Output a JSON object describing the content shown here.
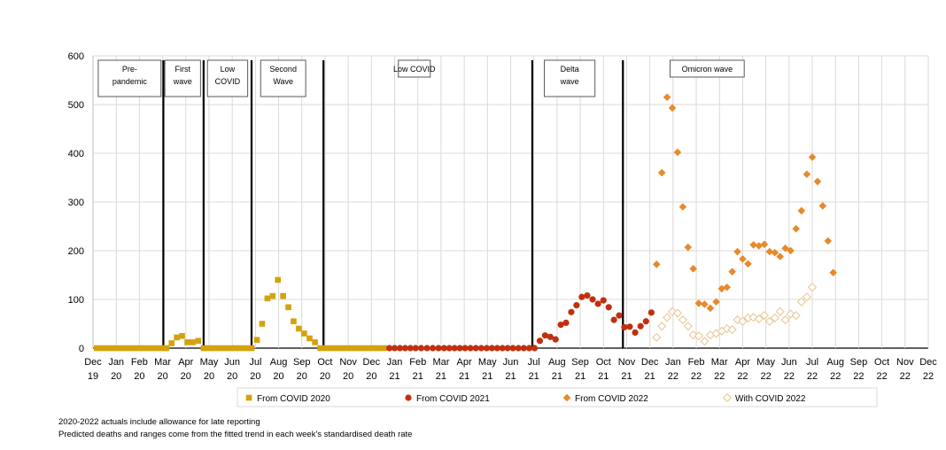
{
  "chart_data": {
    "type": "scatter",
    "ylim": [
      0,
      600
    ],
    "y_ticks": [
      0,
      100,
      200,
      300,
      400,
      500,
      600
    ],
    "x_range_months": [
      "2019-12",
      "2022-12"
    ],
    "x_tick_labels": [
      [
        "Dec",
        "19"
      ],
      [
        "Jan",
        "20"
      ],
      [
        "Feb",
        "20"
      ],
      [
        "Mar",
        "20"
      ],
      [
        "Apr",
        "20"
      ],
      [
        "May",
        "20"
      ],
      [
        "Jun",
        "20"
      ],
      [
        "Jul",
        "20"
      ],
      [
        "Aug",
        "20"
      ],
      [
        "Sep",
        "20"
      ],
      [
        "Oct",
        "20"
      ],
      [
        "Nov",
        "20"
      ],
      [
        "Dec",
        "20"
      ],
      [
        "Jan",
        "21"
      ],
      [
        "Feb",
        "21"
      ],
      [
        "Mar",
        "21"
      ],
      [
        "Apr",
        "21"
      ],
      [
        "May",
        "21"
      ],
      [
        "Jun",
        "21"
      ],
      [
        "Jul",
        "21"
      ],
      [
        "Aug",
        "21"
      ],
      [
        "Sep",
        "21"
      ],
      [
        "Oct",
        "21"
      ],
      [
        "Nov",
        "21"
      ],
      [
        "Dec",
        "21"
      ],
      [
        "Jan",
        "22"
      ],
      [
        "Feb",
        "22"
      ],
      [
        "Mar",
        "22"
      ],
      [
        "Apr",
        "22"
      ],
      [
        "May",
        "22"
      ],
      [
        "Jun",
        "22"
      ],
      [
        "Jul",
        "22"
      ],
      [
        "Aug",
        "22"
      ],
      [
        "Sep",
        "22"
      ],
      [
        "Oct",
        "22"
      ],
      [
        "Nov",
        "22"
      ],
      [
        "Dec",
        "22"
      ]
    ],
    "grid": "vertical and horizontal",
    "legend_position": "bottom",
    "period_dividers": [
      "2020-03-02",
      "2020-04-24",
      "2020-06-26",
      "2020-09-29",
      "2021-06-29",
      "2021-10-27"
    ],
    "period_labels": [
      {
        "text": [
          "Pre-",
          "pandemic"
        ],
        "start": "2019-12-08",
        "end": "2020-02-28"
      },
      {
        "text": [
          "First",
          "wave"
        ],
        "start": "2020-03-04",
        "end": "2020-04-20"
      },
      {
        "text": [
          "Low",
          "COVID"
        ],
        "start": "2020-04-29",
        "end": "2020-06-21"
      },
      {
        "text": [
          "Second",
          "Wave"
        ],
        "start": "2020-07-08",
        "end": "2020-09-06"
      },
      {
        "text": [
          "Low COVID"
        ],
        "start": "2021-01-06",
        "end": "2021-02-16"
      },
      {
        "text": [
          "Delta",
          "wave"
        ],
        "start": "2021-07-15",
        "end": "2021-09-20"
      },
      {
        "text": [
          "Omicron wave"
        ],
        "start": "2021-12-28",
        "end": "2022-04-03"
      }
    ],
    "series": [
      {
        "name": "From COVID 2020",
        "marker": "square",
        "color": "#d4a20c",
        "points": [
          [
            "2019-12-06",
            0
          ],
          [
            "2019-12-13",
            0
          ],
          [
            "2019-12-20",
            0
          ],
          [
            "2019-12-27",
            0
          ],
          [
            "2020-01-03",
            0
          ],
          [
            "2020-01-10",
            0
          ],
          [
            "2020-01-17",
            0
          ],
          [
            "2020-01-24",
            0
          ],
          [
            "2020-01-31",
            0
          ],
          [
            "2020-02-07",
            0
          ],
          [
            "2020-02-14",
            0
          ],
          [
            "2020-02-21",
            0
          ],
          [
            "2020-02-28",
            0
          ],
          [
            "2020-03-06",
            0
          ],
          [
            "2020-03-13",
            10
          ],
          [
            "2020-03-20",
            22
          ],
          [
            "2020-03-27",
            25
          ],
          [
            "2020-04-03",
            12
          ],
          [
            "2020-04-10",
            12
          ],
          [
            "2020-04-17",
            15
          ],
          [
            "2020-04-24",
            0
          ],
          [
            "2020-05-01",
            0
          ],
          [
            "2020-05-08",
            0
          ],
          [
            "2020-05-15",
            0
          ],
          [
            "2020-05-22",
            0
          ],
          [
            "2020-05-29",
            0
          ],
          [
            "2020-06-05",
            0
          ],
          [
            "2020-06-12",
            0
          ],
          [
            "2020-06-19",
            0
          ],
          [
            "2020-06-26",
            0
          ],
          [
            "2020-07-03",
            17
          ],
          [
            "2020-07-10",
            50
          ],
          [
            "2020-07-17",
            102
          ],
          [
            "2020-07-24",
            107
          ],
          [
            "2020-07-31",
            140
          ],
          [
            "2020-08-07",
            107
          ],
          [
            "2020-08-14",
            84
          ],
          [
            "2020-08-21",
            55
          ],
          [
            "2020-08-28",
            40
          ],
          [
            "2020-09-04",
            30
          ],
          [
            "2020-09-11",
            20
          ],
          [
            "2020-09-18",
            12
          ],
          [
            "2020-09-25",
            0
          ],
          [
            "2020-10-02",
            0
          ],
          [
            "2020-10-09",
            0
          ],
          [
            "2020-10-16",
            0
          ],
          [
            "2020-10-23",
            0
          ],
          [
            "2020-10-30",
            0
          ],
          [
            "2020-11-06",
            0
          ],
          [
            "2020-11-13",
            0
          ],
          [
            "2020-11-20",
            0
          ],
          [
            "2020-11-27",
            0
          ],
          [
            "2020-12-04",
            0
          ],
          [
            "2020-12-11",
            0
          ],
          [
            "2020-12-18",
            0
          ]
        ]
      },
      {
        "name": "From COVID 2021",
        "marker": "circle",
        "color": "#c0300f",
        "points": [
          [
            "2020-12-25",
            0
          ],
          [
            "2021-01-01",
            0
          ],
          [
            "2021-01-08",
            0
          ],
          [
            "2021-01-15",
            0
          ],
          [
            "2021-01-22",
            0
          ],
          [
            "2021-01-29",
            0
          ],
          [
            "2021-02-05",
            0
          ],
          [
            "2021-02-12",
            0
          ],
          [
            "2021-02-19",
            0
          ],
          [
            "2021-02-26",
            0
          ],
          [
            "2021-03-05",
            0
          ],
          [
            "2021-03-12",
            0
          ],
          [
            "2021-03-19",
            0
          ],
          [
            "2021-03-26",
            0
          ],
          [
            "2021-04-02",
            0
          ],
          [
            "2021-04-09",
            0
          ],
          [
            "2021-04-16",
            0
          ],
          [
            "2021-04-23",
            0
          ],
          [
            "2021-04-30",
            0
          ],
          [
            "2021-05-07",
            0
          ],
          [
            "2021-05-14",
            0
          ],
          [
            "2021-05-21",
            0
          ],
          [
            "2021-05-28",
            0
          ],
          [
            "2021-06-04",
            0
          ],
          [
            "2021-06-11",
            0
          ],
          [
            "2021-06-18",
            0
          ],
          [
            "2021-06-25",
            0
          ],
          [
            "2021-07-02",
            0
          ],
          [
            "2021-07-09",
            15
          ],
          [
            "2021-07-16",
            26
          ],
          [
            "2021-07-23",
            23
          ],
          [
            "2021-07-30",
            18
          ],
          [
            "2021-08-06",
            48
          ],
          [
            "2021-08-13",
            52
          ],
          [
            "2021-08-20",
            74
          ],
          [
            "2021-08-27",
            88
          ],
          [
            "2021-09-03",
            105
          ],
          [
            "2021-09-10",
            108
          ],
          [
            "2021-09-17",
            100
          ],
          [
            "2021-09-24",
            91
          ],
          [
            "2021-10-01",
            98
          ],
          [
            "2021-10-08",
            84
          ],
          [
            "2021-10-15",
            58
          ],
          [
            "2021-10-22",
            67
          ],
          [
            "2021-10-29",
            43
          ],
          [
            "2021-11-05",
            44
          ],
          [
            "2021-11-12",
            32
          ],
          [
            "2021-11-19",
            45
          ],
          [
            "2021-11-26",
            55
          ],
          [
            "2021-12-03",
            73
          ]
        ]
      },
      {
        "name": "From COVID 2022",
        "marker": "diamond",
        "color": "#e8892a",
        "points": [
          [
            "2021-12-10",
            172
          ],
          [
            "2021-12-17",
            360
          ],
          [
            "2021-12-24",
            515
          ],
          [
            "2021-12-31",
            493
          ],
          [
            "2022-01-07",
            402
          ],
          [
            "2022-01-14",
            290
          ],
          [
            "2022-01-21",
            207
          ],
          [
            "2022-01-28",
            163
          ],
          [
            "2022-02-04",
            92
          ],
          [
            "2022-02-11",
            90
          ],
          [
            "2022-02-18",
            82
          ],
          [
            "2022-02-25",
            95
          ],
          [
            "2022-03-04",
            122
          ],
          [
            "2022-03-11",
            125
          ],
          [
            "2022-03-18",
            157
          ],
          [
            "2022-03-25",
            198
          ],
          [
            "2022-04-01",
            183
          ],
          [
            "2022-04-08",
            173
          ],
          [
            "2022-04-15",
            212
          ],
          [
            "2022-04-22",
            210
          ],
          [
            "2022-04-29",
            213
          ],
          [
            "2022-05-06",
            198
          ],
          [
            "2022-05-13",
            196
          ],
          [
            "2022-05-20",
            188
          ],
          [
            "2022-05-27",
            205
          ],
          [
            "2022-06-03",
            200
          ],
          [
            "2022-06-10",
            245
          ],
          [
            "2022-06-17",
            282
          ],
          [
            "2022-06-24",
            357
          ],
          [
            "2022-07-01",
            392
          ],
          [
            "2022-07-08",
            342
          ],
          [
            "2022-07-15",
            292
          ],
          [
            "2022-07-22",
            220
          ],
          [
            "2022-07-29",
            155
          ]
        ]
      },
      {
        "name": "With COVID 2022",
        "marker": "diamond-open",
        "color": "#e8c99a",
        "points": [
          [
            "2021-12-10",
            22
          ],
          [
            "2021-12-17",
            45
          ],
          [
            "2021-12-24",
            63
          ],
          [
            "2021-12-31",
            75
          ],
          [
            "2022-01-07",
            72
          ],
          [
            "2022-01-14",
            58
          ],
          [
            "2022-01-21",
            45
          ],
          [
            "2022-01-28",
            27
          ],
          [
            "2022-02-04",
            25
          ],
          [
            "2022-02-11",
            14
          ],
          [
            "2022-02-18",
            27
          ],
          [
            "2022-02-25",
            30
          ],
          [
            "2022-03-04",
            35
          ],
          [
            "2022-03-11",
            40
          ],
          [
            "2022-03-18",
            38
          ],
          [
            "2022-03-25",
            58
          ],
          [
            "2022-04-01",
            55
          ],
          [
            "2022-04-08",
            62
          ],
          [
            "2022-04-15",
            63
          ],
          [
            "2022-04-22",
            60
          ],
          [
            "2022-04-29",
            67
          ],
          [
            "2022-05-06",
            55
          ],
          [
            "2022-05-13",
            62
          ],
          [
            "2022-05-20",
            75
          ],
          [
            "2022-05-27",
            58
          ],
          [
            "2022-06-03",
            70
          ],
          [
            "2022-06-10",
            67
          ],
          [
            "2022-06-17",
            95
          ],
          [
            "2022-06-24",
            105
          ],
          [
            "2022-07-01",
            125
          ]
        ]
      }
    ]
  },
  "notes": {
    "line1": "2020-2022  actuals include allowance for late reporting",
    "line2": "Predicted deaths and ranges come from the fitted trend in each week's standardised death rate"
  }
}
